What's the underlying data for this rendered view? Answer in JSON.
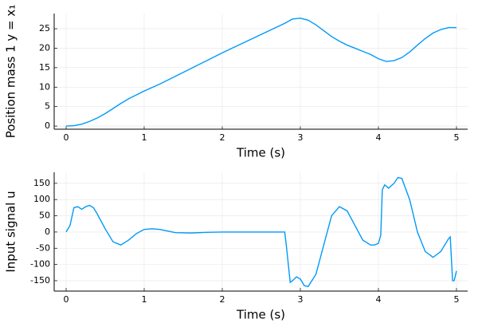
{
  "chart_data": [
    {
      "type": "line",
      "xlabel": "Time (s)",
      "ylabel": "Position mass 1 y = x₁",
      "xlim": [
        -0.153,
        5.143
      ],
      "ylim": [
        -0.8,
        28.9
      ],
      "xticks": [
        0,
        1,
        2,
        3,
        4,
        5
      ],
      "yticks": [
        0,
        5,
        10,
        15,
        20,
        25
      ],
      "grid": true,
      "x": [
        0,
        0.1,
        0.2,
        0.3,
        0.4,
        0.5,
        0.6,
        0.7,
        0.8,
        0.9,
        1.0,
        1.2,
        1.4,
        1.6,
        1.8,
        2.0,
        2.2,
        2.4,
        2.6,
        2.8,
        2.9,
        3.0,
        3.1,
        3.2,
        3.3,
        3.4,
        3.5,
        3.6,
        3.7,
        3.8,
        3.9,
        4.0,
        4.1,
        4.2,
        4.3,
        4.4,
        4.5,
        4.6,
        4.7,
        4.8,
        4.9,
        5.0
      ],
      "series": [
        {
          "color": "#009af9",
          "values": [
            0,
            0.1,
            0.5,
            1.2,
            2.1,
            3.2,
            4.5,
            5.8,
            7.0,
            8.0,
            9.0,
            10.8,
            12.8,
            14.8,
            16.8,
            18.8,
            20.7,
            22.6,
            24.5,
            26.4,
            27.5,
            27.7,
            27.2,
            26.0,
            24.5,
            23.0,
            21.8,
            20.8,
            20.0,
            19.2,
            18.4,
            17.3,
            16.6,
            16.8,
            17.6,
            19.0,
            20.8,
            22.5,
            23.9,
            24.8,
            25.3,
            25.3
          ]
        }
      ]
    },
    {
      "type": "line",
      "xlabel": "Time (s)",
      "ylabel": "Input signal u",
      "xlim": [
        -0.153,
        5.143
      ],
      "ylim": [
        -182,
        184
      ],
      "xticks": [
        0,
        1,
        2,
        3,
        4,
        5
      ],
      "yticks": [
        -150,
        -100,
        -50,
        0,
        50,
        100,
        150
      ],
      "grid": true,
      "x": [
        0,
        0.05,
        0.1,
        0.15,
        0.2,
        0.25,
        0.3,
        0.35,
        0.4,
        0.5,
        0.6,
        0.7,
        0.8,
        0.9,
        1.0,
        1.1,
        1.2,
        1.4,
        1.6,
        1.8,
        2.0,
        2.5,
        2.8,
        2.82,
        2.87,
        2.9,
        2.95,
        3.0,
        3.05,
        3.1,
        3.2,
        3.3,
        3.4,
        3.5,
        3.6,
        3.7,
        3.8,
        3.9,
        3.95,
        4.0,
        4.03,
        4.05,
        4.08,
        4.13,
        4.2,
        4.25,
        4.3,
        4.4,
        4.5,
        4.6,
        4.7,
        4.8,
        4.9,
        4.92,
        4.95,
        4.97,
        5.0
      ],
      "series": [
        {
          "color": "#009af9",
          "values": [
            0,
            20,
            75,
            78,
            70,
            78,
            82,
            75,
            55,
            10,
            -30,
            -40,
            -25,
            -5,
            8,
            10,
            8,
            -2,
            -3,
            -1,
            0,
            0,
            0,
            -40,
            -155,
            -150,
            -138,
            -145,
            -165,
            -168,
            -130,
            -40,
            50,
            78,
            65,
            20,
            -25,
            -40,
            -40,
            -35,
            -10,
            130,
            145,
            135,
            150,
            168,
            165,
            100,
            0,
            -60,
            -78,
            -60,
            -20,
            -15,
            -150,
            -150,
            -120
          ]
        }
      ]
    }
  ]
}
